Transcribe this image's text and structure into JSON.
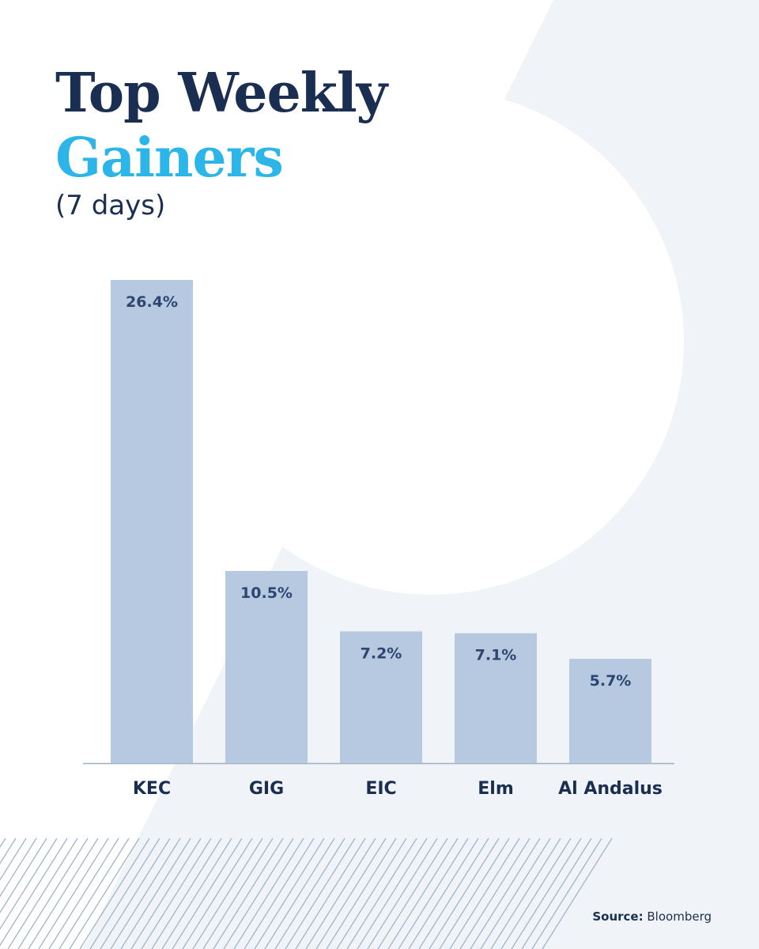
{
  "title": {
    "line1": "Top Weekly",
    "line2": "Gainers",
    "subtitle": "(7 days)"
  },
  "source": {
    "label": "Source:",
    "value": "Bloomberg"
  },
  "colors": {
    "navy": "#1a2e52",
    "accent": "#2bb5e8",
    "bar": "#b7c9e0",
    "label": "#2c4670",
    "background_shape": "#f0f3f7",
    "hatch": "#9fb6c8"
  },
  "chart_data": {
    "type": "bar",
    "title": "Top Weekly Gainers",
    "subtitle": "(7 days)",
    "categories": [
      "KEC",
      "GIG",
      "EIC",
      "Elm",
      "Al Andalus"
    ],
    "values": [
      26.4,
      10.5,
      7.2,
      7.1,
      5.7
    ],
    "value_labels": [
      "26.4%",
      "10.5%",
      "7.2%",
      "7.1%",
      "5.7%"
    ],
    "unit": "%",
    "ylim": [
      0,
      26.4
    ],
    "grid": false,
    "legend": "none"
  }
}
